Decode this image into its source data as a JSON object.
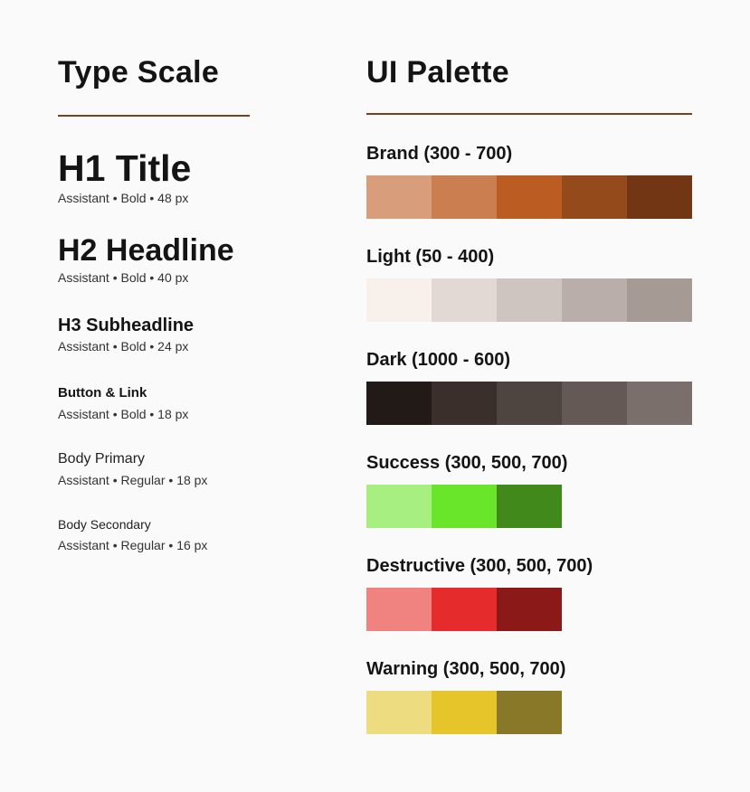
{
  "type_scale": {
    "title": "Type Scale",
    "items": [
      {
        "sample": "H1 Title",
        "meta": "Assistant • Bold • 48 px"
      },
      {
        "sample": "H2 Headline",
        "meta": "Assistant • Bold • 40 px"
      },
      {
        "sample": "H3 Subheadline",
        "meta": "Assistant • Bold • 24 px"
      },
      {
        "sample": "Button & Link",
        "meta": "Assistant • Bold • 18 px"
      },
      {
        "sample": "Body Primary",
        "meta": "Assistant • Regular • 18 px"
      },
      {
        "sample": "Body Secondary",
        "meta": "Assistant • Regular • 16 px"
      }
    ]
  },
  "palette": {
    "title": "UI Palette",
    "divider_color": "#7a3f1c",
    "groups": [
      {
        "label": "Brand (300 - 700)",
        "colors": [
          "#d89d7b",
          "#cb7e50",
          "#bb5c22",
          "#944a1b",
          "#733614"
        ]
      },
      {
        "label": "Light (50 - 400)",
        "colors": [
          "#f8f0eb",
          "#e3d9d4",
          "#cfc5c0",
          "#b9aea9",
          "#a59a94"
        ]
      },
      {
        "label": "Dark (1000 - 600)",
        "colors": [
          "#221a16",
          "#3a2f2a",
          "#4e4440",
          "#645954",
          "#7a6f6a"
        ]
      },
      {
        "label": "Success (300, 500, 700)",
        "colors": [
          "#a7ef80",
          "#69e62a",
          "#41891b"
        ]
      },
      {
        "label": "Destructive (300, 500, 700)",
        "colors": [
          "#f08280",
          "#e52b2b",
          "#8b1918"
        ]
      },
      {
        "label": "Warning (300, 500, 700)",
        "colors": [
          "#eedd80",
          "#e5c52a",
          "#8a7829"
        ]
      }
    ]
  }
}
